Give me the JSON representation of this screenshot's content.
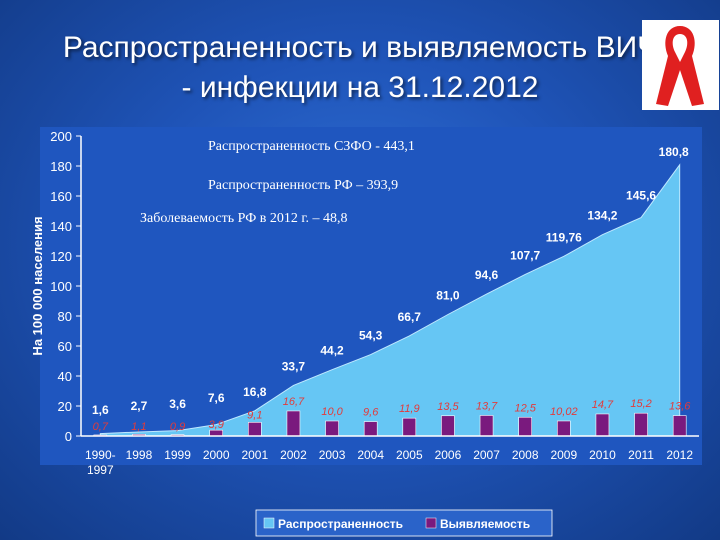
{
  "title": {
    "line1": "Распространенность и выявляемость ВИЧ",
    "line2": "- инфекции на 31.12.2012"
  },
  "logo": {
    "icon": "red-ribbon-icon",
    "color": "#e02020"
  },
  "colors": {
    "prevalence": "#66c6f4",
    "detection": "#7a1a7e",
    "prevalence_label": "#ffffff",
    "detection_label": "#e23b3b"
  },
  "chart_data": {
    "type": "area",
    "categories": [
      "1990-1997",
      "1998",
      "1999",
      "2000",
      "2001",
      "2002",
      "2003",
      "2004",
      "2005",
      "2006",
      "2007",
      "2008",
      "2009",
      "2010",
      "2011",
      "2012"
    ],
    "series": [
      {
        "name": "Распространенность",
        "type": "area",
        "values": [
          1.6,
          2.7,
          3.6,
          7.6,
          16.8,
          33.7,
          44.2,
          54.3,
          66.7,
          81.0,
          94.6,
          107.7,
          119.76,
          134.2,
          145.6,
          180.8
        ],
        "labels": [
          "1,6",
          "2,7",
          "3,6",
          "7,6",
          "16,8",
          "33,7",
          "44,2",
          "54,3",
          "66,7",
          "81,0",
          "94,6",
          "107,7",
          "119,76",
          "134,2",
          "145,6",
          "180,8"
        ]
      },
      {
        "name": "Выявляемость",
        "type": "bar",
        "values": [
          0.7,
          1.1,
          0.9,
          3.9,
          9.1,
          16.7,
          10.0,
          9.6,
          11.9,
          13.5,
          13.7,
          12.5,
          10.02,
          14.7,
          15.2,
          13.6
        ],
        "labels": [
          "0,7",
          "1,1",
          "0,9",
          "3,9",
          "9,1",
          "16,7",
          "10,0",
          "9,6",
          "11,9",
          "13,5",
          "13,7",
          "12,5",
          "10,02",
          "14,7",
          "15,2",
          "13,6"
        ]
      }
    ],
    "ylabel": "На 100 000 населения",
    "ylim": [
      0,
      200
    ],
    "yticks": [
      0,
      20,
      40,
      60,
      80,
      100,
      120,
      140,
      160,
      180,
      200
    ],
    "grid": false,
    "legend": "bottom-center",
    "annotations": [
      "Распространенность СЗФО - 443,1",
      "Распространенность РФ – 393,9",
      "Заболеваемость РФ в 2012 г. – 48,8"
    ]
  }
}
